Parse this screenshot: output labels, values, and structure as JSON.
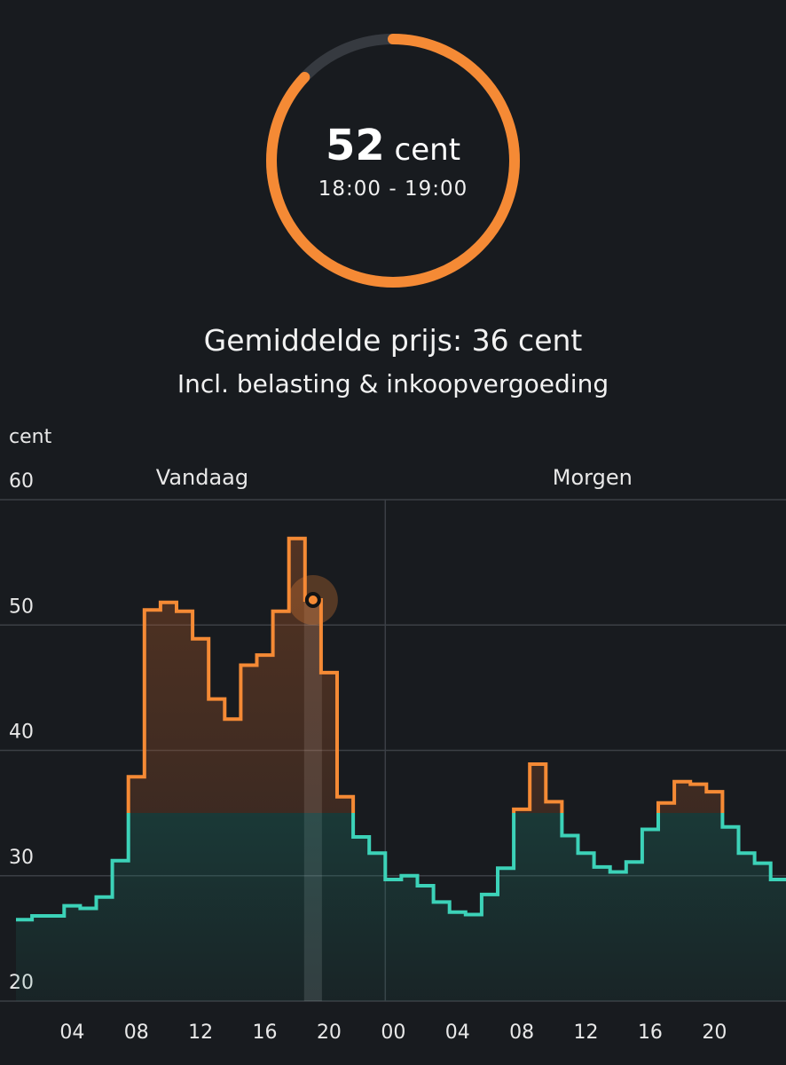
{
  "current": {
    "price_value": "52",
    "price_unit": "cent",
    "time_slot": "18:00 - 19:00",
    "gauge_fraction": 0.87
  },
  "average": {
    "label": "Gemiddelde prijs: 36 cent",
    "note": "Incl. belasting & inkoopvergoeding"
  },
  "colors": {
    "background": "#181b1f",
    "high": "#f58a35",
    "low": "#3cd2b8",
    "gauge_track": "#363a40",
    "grid": "#3b3f45"
  },
  "chart_data": {
    "type": "line",
    "step": true,
    "ylabel": "cent",
    "ylim": [
      20,
      60
    ],
    "yticks": [
      20,
      30,
      40,
      50,
      60
    ],
    "xticks": [
      "04",
      "08",
      "12",
      "16",
      "20",
      "00",
      "04",
      "08",
      "12",
      "16",
      "20"
    ],
    "day_labels": [
      "Vandaag",
      "Morgen"
    ],
    "color_threshold": 35,
    "current_hour": 18,
    "current_value": 52,
    "x": [
      0,
      1,
      2,
      3,
      4,
      5,
      6,
      7,
      8,
      9,
      10,
      11,
      12,
      13,
      14,
      15,
      16,
      17,
      18,
      19,
      20,
      21,
      22,
      23,
      24,
      25,
      26,
      27,
      28,
      29,
      30,
      31,
      32,
      33,
      34,
      35,
      36,
      37,
      38,
      39,
      40,
      41,
      42,
      43,
      44,
      45,
      46,
      47
    ],
    "values": [
      26.5,
      26.8,
      26.8,
      27.6,
      27.4,
      28.3,
      31.2,
      37.9,
      51.2,
      51.8,
      51.1,
      48.9,
      44.1,
      42.5,
      46.8,
      47.6,
      51.1,
      56.9,
      52.0,
      46.2,
      36.3,
      33.1,
      31.8,
      29.7,
      30.0,
      29.2,
      27.9,
      27.1,
      26.9,
      28.5,
      30.6,
      35.3,
      38.9,
      35.9,
      33.2,
      31.8,
      30.7,
      30.3,
      31.1,
      33.7,
      35.8,
      37.5,
      37.3,
      36.7,
      33.9,
      31.8,
      31.0,
      29.7
    ]
  }
}
